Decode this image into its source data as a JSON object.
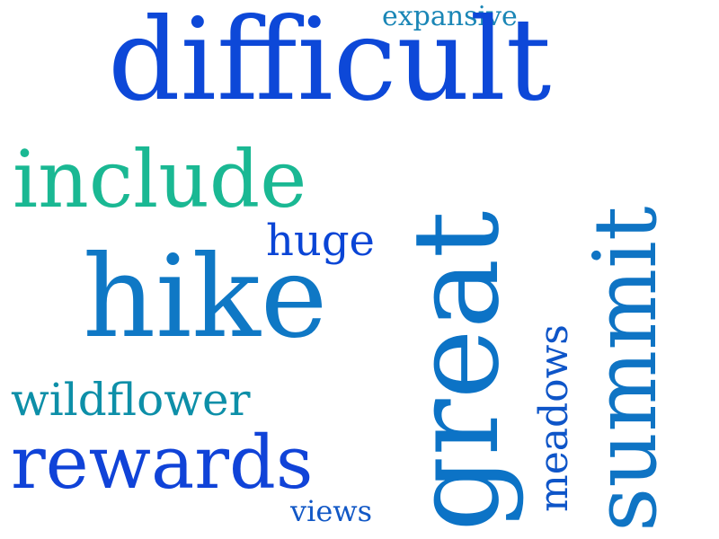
{
  "words": {
    "expansive": "expansive",
    "difficult": "difficult",
    "include": "include",
    "huge": "huge",
    "hike": "hike",
    "wildflower": "wildflower",
    "rewards": "rewards",
    "views": "views",
    "great": "great",
    "meadows": "meadows",
    "summit": "summit"
  },
  "colors": {
    "background": "#ffffff",
    "dark_blue": "#0d48d8",
    "medium_blue": "#0f78c5",
    "teal": "#0d8fa8",
    "green_teal": "#1ab893"
  }
}
